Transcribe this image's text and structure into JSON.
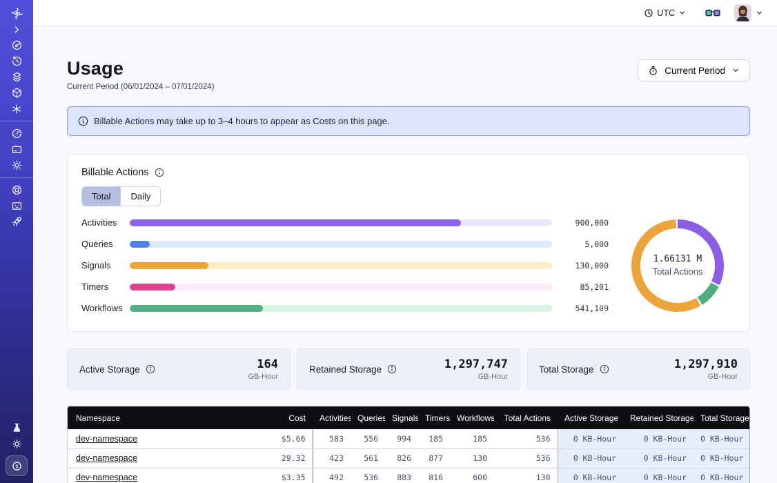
{
  "topbar": {
    "timezone_label": "UTC",
    "icons": [
      "clock-icon",
      "chevron-down-icon",
      "glasses-icon",
      "avatar",
      "chevron-down-icon"
    ]
  },
  "sidebar": {
    "accent_top": "#5150da",
    "accent_bottom": "#222163",
    "icons": [
      "temporal-logo",
      "chevron-right-icon",
      "namespaces-icon",
      "history-icon",
      "layers-icon",
      "cube-icon",
      "asterisk-icon",
      "usage-gauge-icon",
      "billing-card-icon",
      "settings-gear-icon",
      "support-lifebuoy-icon",
      "feedback-monitor-icon",
      "rocket-icon",
      "labs-flask-icon",
      "theme-sun-icon",
      "pricing-coin-icon"
    ]
  },
  "page": {
    "title": "Usage",
    "subtitle": "Current Period (06/01/2024 – 07/01/2024)",
    "period_button_label": "Current Period"
  },
  "banner": {
    "text": "Billable Actions may take up to 3–4 hours to appear as Costs on this page."
  },
  "billable_actions": {
    "title": "Billable Actions",
    "tabs": [
      {
        "label": "Total",
        "selected": true
      },
      {
        "label": "Daily",
        "selected": false
      }
    ]
  },
  "chart_data": [
    {
      "type": "bar",
      "title": "Billable Actions – Total",
      "orientation": "horizontal",
      "categories": [
        "Activities",
        "Queries",
        "Signals",
        "Timers",
        "Workflows"
      ],
      "values": [
        900000,
        5000,
        130000,
        85201,
        541109
      ],
      "value_labels": [
        "900,000",
        "5,000",
        "130,000",
        "85,201",
        "541,109"
      ],
      "bar_fill_pct": [
        78.5,
        4.7,
        18.6,
        10.8,
        31.6
      ],
      "fill_colors": [
        "#8A63E6",
        "#4D82E8",
        "#EBA438",
        "#D8468F",
        "#50B183"
      ],
      "track_colors": [
        "#ECE6FB",
        "#DCE8FB",
        "#FBEEC6",
        "#FCE9F9",
        "#D7F4E2"
      ],
      "grid": false,
      "legend": false
    },
    {
      "type": "pie",
      "title": "Total Actions donut",
      "center_value": "1.66131 M",
      "center_label": "Total Actions",
      "segments": [
        {
          "name": "activities",
          "color": "#8A5FE3",
          "pct": 32.5
        },
        {
          "name": "workflows",
          "color": "#4FAE80",
          "pct": 9.2
        },
        {
          "name": "signals",
          "color": "#ECA43D",
          "pct": 58.3
        }
      ]
    }
  ],
  "storage_cards": [
    {
      "label": "Active Storage",
      "value": "164",
      "unit": "GB-Hour"
    },
    {
      "label": "Retained Storage",
      "value": "1,297,747",
      "unit": "GB-Hour"
    },
    {
      "label": "Total Storage",
      "value": "1,297,910",
      "unit": "GB-Hour"
    }
  ],
  "table": {
    "columns": [
      "Namespace",
      "Cost",
      "Activities",
      "Queries",
      "Signals",
      "Timers",
      "Workflows",
      "Total Actions",
      "Active Storage",
      "Retained Storage",
      "Total Storage"
    ],
    "column_keys": [
      "namespace",
      "cost",
      "activities",
      "queries",
      "signals",
      "timers",
      "workflows",
      "total_actions",
      "active_storage",
      "retained_storage",
      "total_storage"
    ],
    "rows": [
      {
        "namespace": "dev-namespace",
        "cost": "$5.66",
        "activities": "583",
        "queries": "556",
        "signals": "994",
        "timers": "185",
        "workflows": "185",
        "total_actions": "536",
        "active_storage": "0 KB-Hour",
        "retained_storage": "0 KB-Hour",
        "total_storage": "0 KB-Hour"
      },
      {
        "namespace": "dev-namespace",
        "cost": "29.32",
        "activities": "423",
        "queries": "561",
        "signals": "826",
        "timers": "877",
        "workflows": "130",
        "total_actions": "536",
        "active_storage": "0 KB-Hour",
        "retained_storage": "0 KB-Hour",
        "total_storage": "0 KB-Hour"
      },
      {
        "namespace": "dev-namespace",
        "cost": "$3.35",
        "activities": "492",
        "queries": "536",
        "signals": "883",
        "timers": "816",
        "workflows": "600",
        "total_actions": "130",
        "active_storage": "0 KB-Hour",
        "retained_storage": "0 KB-Hour",
        "total_storage": "0 KB-Hour"
      },
      {
        "namespace": "",
        "cost": "",
        "activities": "",
        "queries": "",
        "signals": "",
        "timers": "",
        "workflows": "",
        "total_actions": "",
        "active_storage": "",
        "retained_storage": "",
        "total_storage": ""
      }
    ]
  }
}
